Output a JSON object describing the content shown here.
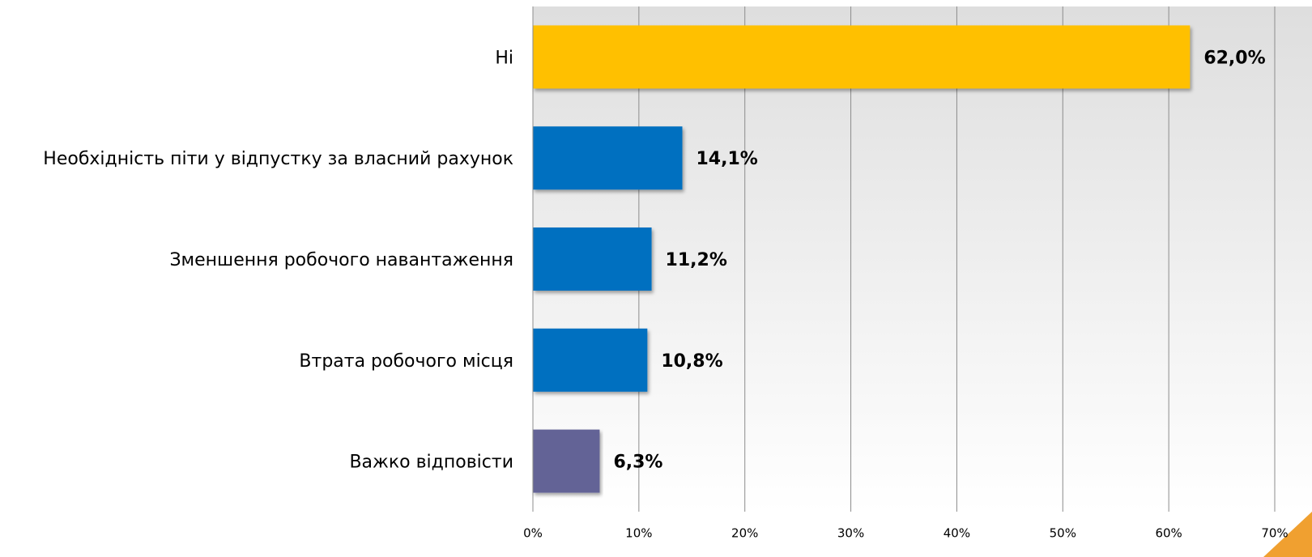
{
  "chart_data": {
    "type": "bar",
    "orientation": "horizontal",
    "categories": [
      "Ні",
      "Необхідність піти у відпустку за власний рахунок",
      "Зменшення робочого навантаження",
      "Втрата робочого місця",
      "Важко відповісти"
    ],
    "values": [
      62.0,
      14.1,
      11.2,
      10.8,
      6.3
    ],
    "value_labels": [
      "62,0%",
      "14,1%",
      "11,2%",
      "10,8%",
      "6,3%"
    ],
    "colors": [
      "#ffc000",
      "#0070c0",
      "#0070c0",
      "#0070c0",
      "#646496"
    ],
    "xlim": [
      0,
      70
    ],
    "xticks": [
      {
        "value": 0,
        "label": "0%"
      },
      {
        "value": 10,
        "label": "10%"
      },
      {
        "value": 20,
        "label": "20%"
      },
      {
        "value": 30,
        "label": "30%"
      },
      {
        "value": 40,
        "label": "40%"
      },
      {
        "value": 50,
        "label": "50%"
      },
      {
        "value": 60,
        "label": "60%"
      },
      {
        "value": 70,
        "label": "70%"
      }
    ],
    "grid": true
  }
}
